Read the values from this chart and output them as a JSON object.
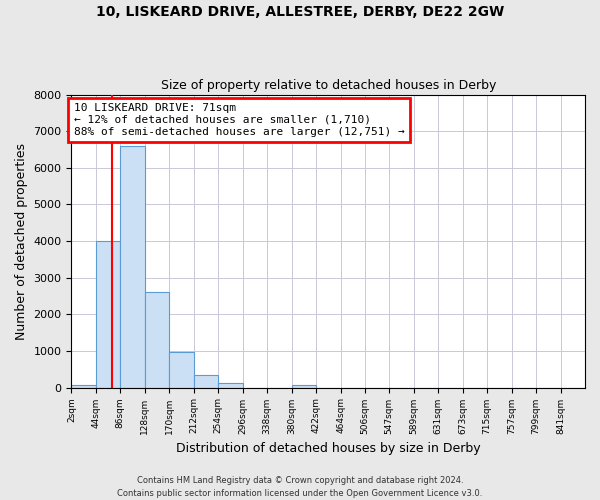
{
  "title": "10, LISKEARD DRIVE, ALLESTREE, DERBY, DE22 2GW",
  "subtitle": "Size of property relative to detached houses in Derby",
  "xlabel": "Distribution of detached houses by size in Derby",
  "ylabel": "Number of detached properties",
  "footnote1": "Contains HM Land Registry data © Crown copyright and database right 2024.",
  "footnote2": "Contains public sector information licensed under the Open Government Licence v3.0.",
  "bin_labels": [
    "2sqm",
    "44sqm",
    "86sqm",
    "128sqm",
    "170sqm",
    "212sqm",
    "254sqm",
    "296sqm",
    "338sqm",
    "380sqm",
    "422sqm",
    "464sqm",
    "506sqm",
    "547sqm",
    "589sqm",
    "631sqm",
    "673sqm",
    "715sqm",
    "757sqm",
    "799sqm",
    "841sqm"
  ],
  "bar_heights": [
    60,
    4000,
    6600,
    2600,
    980,
    340,
    130,
    0,
    0,
    60,
    0,
    0,
    0,
    0,
    0,
    0,
    0,
    0,
    0,
    0,
    0
  ],
  "bar_color": "#cce0f5",
  "bar_edge_color": "#5b9bd5",
  "property_line_color": "red",
  "annotation_line1": "10 LISKEARD DRIVE: 71sqm",
  "annotation_line2": "← 12% of detached houses are smaller (1,710)",
  "annotation_line3": "88% of semi-detached houses are larger (12,751) →",
  "ylim": [
    0,
    8000
  ],
  "bin_edges": [
    2,
    44,
    86,
    128,
    170,
    212,
    254,
    296,
    338,
    380,
    422,
    464,
    506,
    547,
    589,
    631,
    673,
    715,
    757,
    799,
    841
  ],
  "background_color": "#e8e8e8",
  "plot_background_color": "#ffffff",
  "grid_color": "#c8c8d8"
}
